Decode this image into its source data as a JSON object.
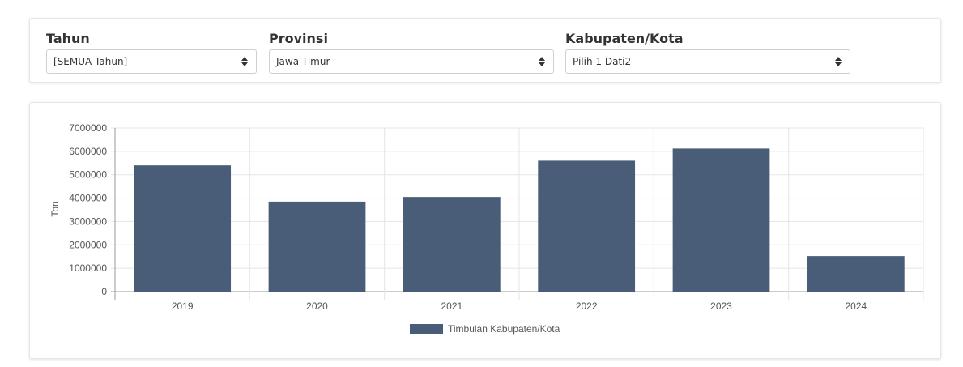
{
  "filters": {
    "tahun": {
      "label": "Tahun",
      "value": "[SEMUA Tahun]"
    },
    "provinsi": {
      "label": "Provinsi",
      "value": "Jawa Timur"
    },
    "kabupaten": {
      "label": "Kabupaten/Kota",
      "value": "Pilih 1 Dati2"
    }
  },
  "chart_data": {
    "type": "bar",
    "categories": [
      "2019",
      "2020",
      "2021",
      "2022",
      "2023",
      "2024"
    ],
    "series": [
      {
        "name": "Timbulan Kabupaten/Kota",
        "color": "#4a5d78",
        "values": [
          5400000,
          3850000,
          4050000,
          5600000,
          6120000,
          1520000
        ]
      }
    ],
    "ylabel": "Ton",
    "xlabel": "",
    "ylim": [
      0,
      7000000
    ],
    "yticks": [
      "0",
      "1000000",
      "2000000",
      "3000000",
      "4000000",
      "5000000",
      "6000000",
      "7000000"
    ],
    "grid": true,
    "legend": "bottom"
  }
}
